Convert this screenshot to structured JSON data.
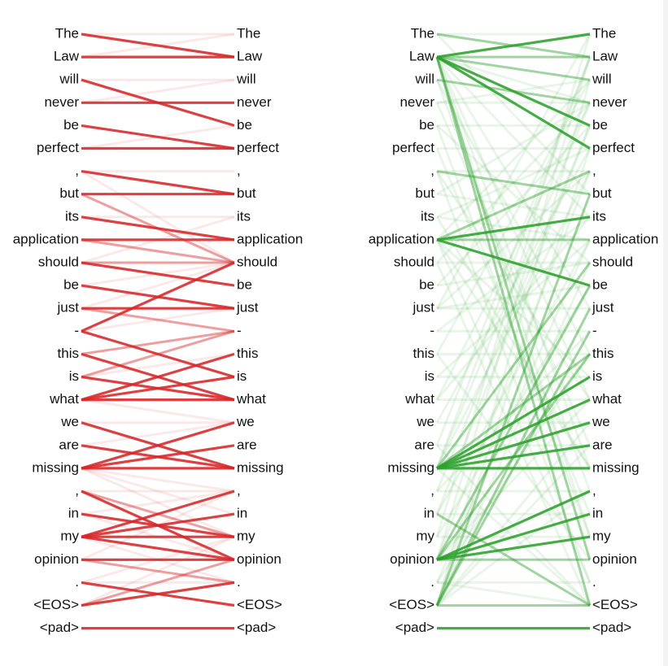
{
  "tokens": [
    "The",
    "Law",
    "will",
    "never",
    "be",
    "perfect",
    ",",
    "but",
    "its",
    "application",
    "should",
    "be",
    "just",
    "-",
    "this",
    "is",
    "what",
    "we",
    "are",
    "missing",
    ",",
    "in",
    "my",
    "opinion",
    ".",
    "<EOS>",
    "<pad>"
  ],
  "panels": [
    {
      "id": "red",
      "color": "#d62728",
      "strong": [
        [
          0,
          1
        ],
        [
          1,
          1
        ],
        [
          2,
          4
        ],
        [
          3,
          3
        ],
        [
          4,
          5
        ],
        [
          5,
          5
        ],
        [
          6,
          7
        ],
        [
          7,
          7
        ],
        [
          8,
          9
        ],
        [
          9,
          9
        ],
        [
          10,
          11
        ],
        [
          11,
          12
        ],
        [
          12,
          12
        ],
        [
          13,
          10
        ],
        [
          13,
          15
        ],
        [
          14,
          16
        ],
        [
          15,
          16
        ],
        [
          16,
          14
        ],
        [
          16,
          15
        ],
        [
          16,
          16
        ],
        [
          17,
          19
        ],
        [
          18,
          19
        ],
        [
          19,
          17
        ],
        [
          19,
          18
        ],
        [
          19,
          19
        ],
        [
          20,
          23
        ],
        [
          21,
          22
        ],
        [
          22,
          20
        ],
        [
          22,
          21
        ],
        [
          22,
          22
        ],
        [
          22,
          23
        ],
        [
          23,
          23
        ],
        [
          24,
          25
        ],
        [
          25,
          24
        ],
        [
          26,
          26
        ]
      ],
      "medium": [
        [
          7,
          10
        ],
        [
          9,
          10
        ],
        [
          10,
          10
        ],
        [
          12,
          13
        ],
        [
          14,
          13
        ],
        [
          15,
          13
        ],
        [
          20,
          22
        ],
        [
          23,
          24
        ],
        [
          25,
          23
        ]
      ],
      "faint": [
        [
          0,
          0
        ],
        [
          1,
          0
        ],
        [
          2,
          2
        ],
        [
          3,
          2
        ],
        [
          5,
          4
        ],
        [
          6,
          6
        ],
        [
          8,
          8
        ],
        [
          10,
          8
        ],
        [
          11,
          10
        ],
        [
          13,
          12
        ],
        [
          15,
          14
        ],
        [
          16,
          17
        ],
        [
          17,
          17
        ],
        [
          18,
          17
        ],
        [
          19,
          20
        ],
        [
          20,
          20
        ],
        [
          21,
          20
        ],
        [
          21,
          23
        ],
        [
          22,
          24
        ],
        [
          24,
          24
        ],
        [
          24,
          22
        ],
        [
          23,
          20
        ],
        [
          25,
          22
        ],
        [
          6,
          10
        ],
        [
          12,
          10
        ],
        [
          19,
          21
        ],
        [
          19,
          22
        ]
      ]
    },
    {
      "id": "green",
      "color": "#2ca02c",
      "strong": [
        [
          1,
          0
        ],
        [
          1,
          4
        ],
        [
          1,
          5
        ],
        [
          9,
          8
        ],
        [
          9,
          11
        ],
        [
          19,
          15
        ],
        [
          19,
          16
        ],
        [
          19,
          17
        ],
        [
          19,
          18
        ],
        [
          19,
          19
        ],
        [
          23,
          20
        ],
        [
          23,
          21
        ],
        [
          23,
          22
        ],
        [
          26,
          26
        ]
      ],
      "medium": [
        [
          0,
          1
        ],
        [
          1,
          1
        ],
        [
          1,
          2
        ],
        [
          2,
          3
        ],
        [
          6,
          7
        ],
        [
          9,
          6
        ],
        [
          9,
          9
        ],
        [
          23,
          23
        ],
        [
          25,
          25
        ],
        [
          25,
          13
        ],
        [
          19,
          14
        ],
        [
          25,
          12
        ],
        [
          23,
          11
        ],
        [
          1,
          25
        ],
        [
          1,
          23
        ],
        [
          19,
          10
        ],
        [
          25,
          7
        ],
        [
          23,
          14
        ],
        [
          21,
          25
        ]
      ],
      "faint": [
        [
          0,
          0
        ],
        [
          1,
          3
        ],
        [
          3,
          2
        ],
        [
          3,
          3
        ],
        [
          4,
          4
        ],
        [
          5,
          5
        ],
        [
          6,
          6
        ],
        [
          7,
          8
        ],
        [
          8,
          9
        ],
        [
          10,
          10
        ],
        [
          11,
          10
        ],
        [
          12,
          12
        ],
        [
          12,
          11
        ],
        [
          13,
          13
        ],
        [
          14,
          14
        ],
        [
          15,
          15
        ],
        [
          16,
          16
        ],
        [
          17,
          17
        ],
        [
          18,
          18
        ],
        [
          20,
          20
        ],
        [
          21,
          21
        ],
        [
          22,
          22
        ],
        [
          24,
          24
        ],
        [
          1,
          8
        ],
        [
          1,
          12
        ],
        [
          1,
          19
        ],
        [
          1,
          22
        ],
        [
          0,
          7
        ],
        [
          2,
          14
        ],
        [
          3,
          18
        ],
        [
          4,
          10
        ],
        [
          5,
          21
        ],
        [
          6,
          24
        ],
        [
          7,
          3
        ],
        [
          8,
          5
        ],
        [
          9,
          2
        ],
        [
          9,
          24
        ],
        [
          9,
          19
        ],
        [
          10,
          25
        ],
        [
          11,
          4
        ],
        [
          12,
          0
        ],
        [
          13,
          8
        ],
        [
          14,
          2
        ],
        [
          15,
          9
        ],
        [
          16,
          3
        ],
        [
          17,
          5
        ],
        [
          18,
          25
        ],
        [
          19,
          1
        ],
        [
          19,
          3
        ],
        [
          19,
          25
        ],
        [
          20,
          13
        ],
        [
          21,
          9
        ],
        [
          22,
          11
        ],
        [
          23,
          6
        ],
        [
          24,
          14
        ],
        [
          25,
          10
        ],
        [
          25,
          2
        ],
        [
          25,
          5
        ],
        [
          25,
          18
        ],
        [
          25,
          20
        ],
        [
          23,
          1
        ],
        [
          21,
          4
        ],
        [
          22,
          0
        ],
        [
          24,
          9
        ],
        [
          2,
          20
        ],
        [
          4,
          22
        ],
        [
          6,
          16
        ],
        [
          8,
          19
        ],
        [
          10,
          3
        ],
        [
          12,
          6
        ],
        [
          14,
          23
        ],
        [
          16,
          8
        ],
        [
          18,
          1
        ],
        [
          20,
          4
        ],
        [
          24,
          25
        ],
        [
          1,
          16
        ],
        [
          9,
          15
        ],
        [
          19,
          6
        ],
        [
          23,
          16
        ],
        [
          25,
          17
        ]
      ]
    }
  ]
}
